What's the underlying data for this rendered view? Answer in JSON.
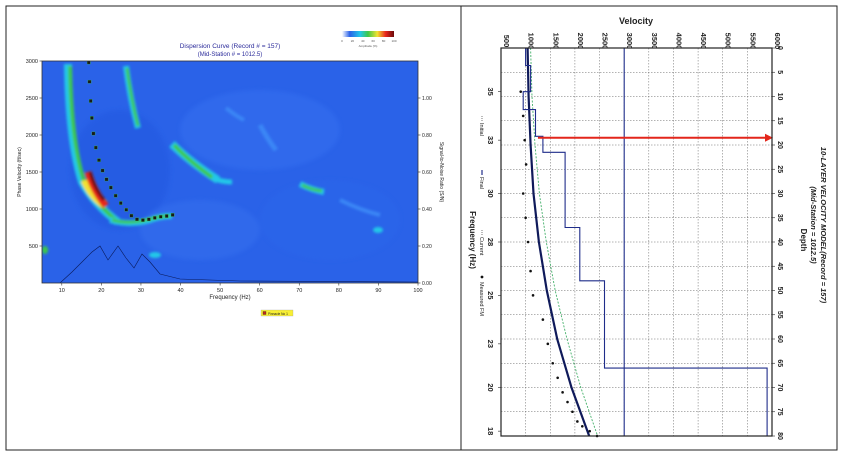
{
  "colors": {
    "frame": "#222222",
    "heatmap_bg": "#2a62e8",
    "pick": "#1a1a1a",
    "final_model": "#1f2d8a",
    "measured_curve": "#0f1a5a",
    "initial_curve": "#44b06a",
    "arrow": "#e3261b",
    "legend_box": "#f8ef33",
    "title": "#2a2a9a"
  },
  "chart_data": [
    {
      "type": "heatmap",
      "title": "Dispersion Curve (Record # = 157)",
      "subtitle": "(Mid-Station # = 1012.5)",
      "xlabel": "Frequency (Hz)",
      "ylabel": "Phase Velocity (ft/sec)",
      "y2label": "Signal-to-Noise Ratio (S/N)",
      "xlim": [
        5,
        100
      ],
      "ylim": [
        0,
        3000
      ],
      "y2lim": [
        0,
        1.2
      ],
      "xticks": [
        10,
        20,
        30,
        40,
        50,
        60,
        70,
        80,
        90,
        100
      ],
      "yticks": [
        500,
        1000,
        1500,
        2000,
        2500,
        3000
      ],
      "y2ticks": [
        "0.00",
        "0.20",
        "0.40",
        "0.60",
        "0.80",
        "1.00"
      ],
      "colorbar": {
        "label": "Amplitude (%)",
        "ticks": [
          "0",
          "20",
          "40",
          "60",
          "80",
          "100"
        ]
      },
      "legend": [
        "Pinnacle No 1"
      ],
      "picks": {
        "x": [
          16.8,
          17.0,
          17.3,
          17.6,
          18.0,
          18.6,
          19.4,
          20.3,
          21.3,
          22.4,
          23.6,
          24.9,
          26.3,
          27.6,
          29.0,
          30.5,
          32.0,
          33.5,
          35.0,
          36.5,
          38.0
        ],
        "y": [
          2980,
          2720,
          2460,
          2230,
          2020,
          1830,
          1660,
          1520,
          1400,
          1290,
          1180,
          1080,
          990,
          910,
          860,
          850,
          860,
          880,
          895,
          905,
          920
        ]
      }
    },
    {
      "type": "line",
      "title": "10-LAYER VELOCITY MODEL(Record = 157)",
      "subtitle": "(Mid-Station = 1012.5)",
      "velocity_label": "Velocity",
      "depth_label": "Depth",
      "frequency_label": "Frequency (Hz)",
      "velocity_range": [
        500,
        6000
      ],
      "velocity_ticks": [
        "500",
        "1000",
        "1500",
        "2000",
        "2500",
        "3000",
        "3500",
        "4000",
        "4500",
        "5000",
        "5500",
        "6000"
      ],
      "depth_range": [
        0,
        80
      ],
      "depth_ticks": [
        "0",
        "5",
        "10",
        "15",
        "20",
        "25",
        "30",
        "35",
        "40",
        "45",
        "50",
        "55",
        "60",
        "65",
        "70",
        "75",
        "80"
      ],
      "frequency_ticks": [
        {
          "label": "35",
          "depth": 9
        },
        {
          "label": "33",
          "depth": 19
        },
        {
          "label": "30",
          "depth": 30
        },
        {
          "label": "28",
          "depth": 40
        },
        {
          "label": "25",
          "depth": 51
        },
        {
          "label": "23",
          "depth": 61
        },
        {
          "label": "20",
          "depth": 70
        },
        {
          "label": "18",
          "depth": 79
        }
      ],
      "legend": [
        {
          "marker": "dash",
          "label": "Initial"
        },
        {
          "marker": "line",
          "label": "Final"
        },
        {
          "marker": "dash",
          "label": "Current"
        },
        {
          "marker": "dot",
          "label": "Measured FM"
        }
      ],
      "final_model": {
        "depth": [
          0,
          3.6,
          3.6,
          9,
          9,
          12.7,
          12.7,
          18.2,
          18.2,
          21.5,
          21.5,
          29.5,
          29.5,
          37,
          37,
          48,
          48,
          66,
          66,
          81
        ],
        "velocity": [
          1000,
          1000,
          1100,
          1100,
          950,
          950,
          1200,
          1200,
          1350,
          1350,
          1800,
          1800,
          1800,
          1800,
          2100,
          2100,
          2600,
          2600,
          3000,
          3000
        ]
      },
      "right_model": {
        "depth": [
          0,
          66,
          66,
          81
        ],
        "velocity": [
          3000,
          3000,
          5900,
          5900
        ]
      },
      "measured_curve": {
        "depth": [
          0,
          10,
          20,
          30,
          40,
          50,
          60,
          70,
          81
        ],
        "velocity": [
          1040,
          1060,
          1100,
          1160,
          1270,
          1430,
          1640,
          1930,
          2290
        ]
      },
      "initial_curve": {
        "depth": [
          0,
          10,
          20,
          30,
          40,
          50,
          60,
          70,
          81
        ],
        "velocity": [
          1100,
          1130,
          1190,
          1280,
          1420,
          1600,
          1840,
          2120,
          2460
        ]
      },
      "measured_points": {
        "depth": [
          9,
          14,
          19,
          24,
          30,
          35,
          40,
          46,
          51,
          56,
          61,
          65,
          68,
          71,
          73,
          75,
          77,
          78,
          79,
          80
        ],
        "velocity": [
          900,
          950,
          980,
          1010,
          950,
          1000,
          1050,
          1100,
          1150,
          1350,
          1450,
          1550,
          1650,
          1750,
          1850,
          1950,
          2050,
          2150,
          2300,
          2450
        ]
      },
      "arrow": {
        "depth": 18.5,
        "velocity_start": 1250,
        "velocity_end": 6000
      }
    }
  ]
}
